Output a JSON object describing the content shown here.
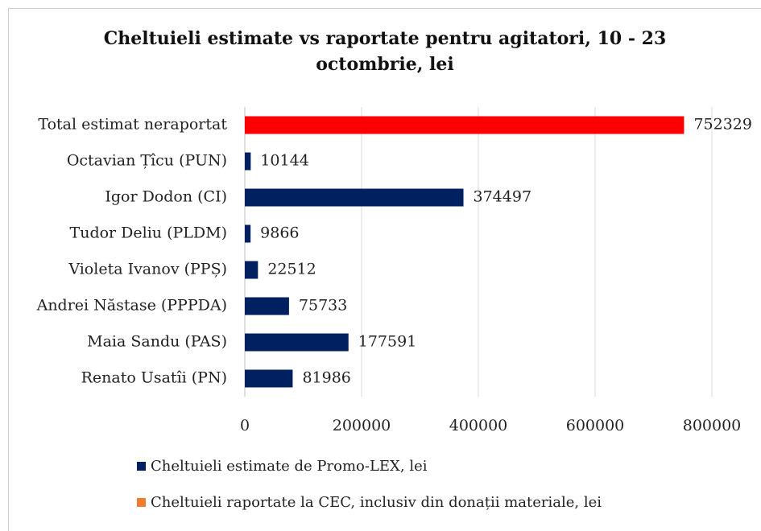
{
  "chart_data": {
    "type": "hbar",
    "title": "Cheltuieli estimate vs raportate pentru agitatori, 10 - 23 octombrie, lei",
    "categories": [
      "Total estimat neraportat",
      "Octavian Țîcu (PUN)",
      "Igor Dodon (CI)",
      "Tudor Deliu (PLDM)",
      "Violeta Ivanov (PPȘ)",
      "Andrei Năstase (PPPDA)",
      "Maia Sandu (PAS)",
      "Renato Usatîi (PN)"
    ],
    "series": [
      {
        "name": "Cheltuieli estimate de Promo-LEX, lei",
        "color": "#002060",
        "point_colors": [
          "#ff0000",
          null,
          null,
          null,
          null,
          null,
          null,
          null
        ],
        "values": [
          752329,
          10144,
          374497,
          9866,
          22512,
          75733,
          177591,
          81986
        ]
      },
      {
        "name": "Cheltuieli raportate la CEC, inclusiv din donații materiale, lei",
        "color": "#ed7d31",
        "values": [
          null,
          null,
          null,
          null,
          null,
          null,
          null,
          null
        ]
      }
    ],
    "xlim": [
      0,
      880000
    ],
    "xticks": [
      0,
      200000,
      400000,
      600000,
      800000
    ],
    "grid": true
  }
}
